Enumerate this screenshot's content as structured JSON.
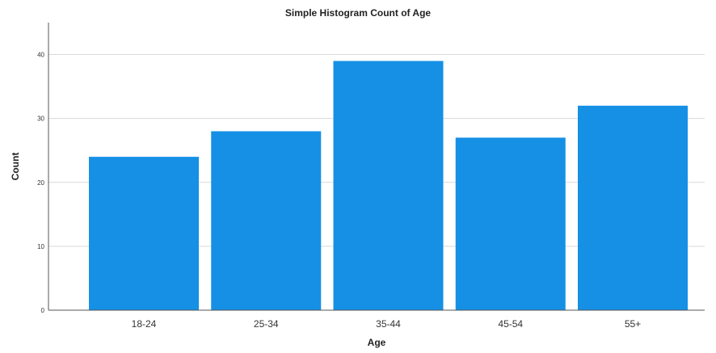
{
  "chart_data": {
    "type": "bar",
    "title": "Simple Histogram Count of Age",
    "xlabel": "Age",
    "ylabel": "Count",
    "categories": [
      "18-24",
      "25-34",
      "35-44",
      "45-54",
      "55+"
    ],
    "values": [
      24,
      28,
      39,
      27,
      32
    ],
    "ylim": [
      0,
      45
    ],
    "yticks": [
      0,
      10,
      20,
      30,
      40
    ],
    "grid": true,
    "bar_color": "#1590e5"
  }
}
